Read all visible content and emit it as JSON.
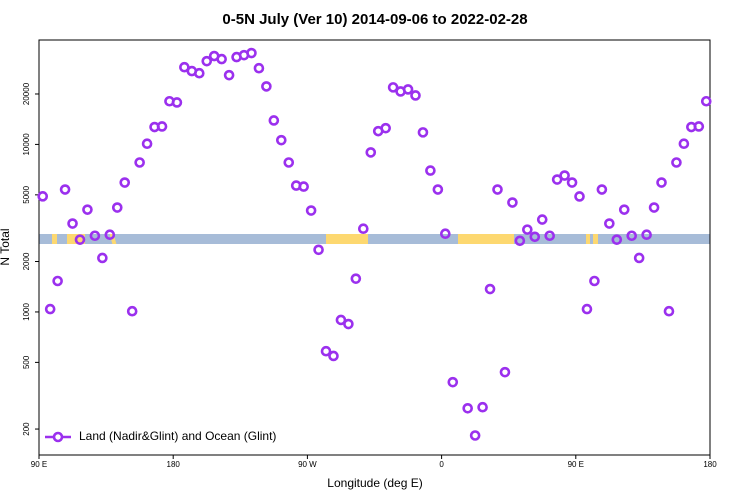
{
  "chart_data": {
    "type": "scatter",
    "title": "0-5N July (Ver 10)   2014-09-06 to 2022-02-28",
    "xlabel": "Longitude (deg E)",
    "ylabel": "N Total",
    "xlim": [
      90,
      540
    ],
    "xticks": [
      {
        "value": 90,
        "label": "90 E"
      },
      180,
      {
        "value": 270,
        "label": "90 W"
      },
      {
        "value": 360,
        "label": "0"
      },
      {
        "value": 450,
        "label": "90 E"
      },
      {
        "value": 540,
        "label": "180"
      }
    ],
    "ylim": [
      140,
      42000
    ],
    "yticks": [
      200,
      500,
      1000,
      2000,
      5000,
      10000,
      20000
    ],
    "log_y": true,
    "legend": "bottom-left",
    "series": [
      {
        "name": "Land (Nadir&Glint) and Ocean (Glint)",
        "color": "#9b30ee",
        "x": [
          92.5,
          97.5,
          102.5,
          107.5,
          112.5,
          117.5,
          122.5,
          127.5,
          132.5,
          137.5,
          142.5,
          147.5,
          152.5,
          157.5,
          162.5,
          167.5,
          172.5,
          177.5,
          182.5,
          187.5,
          192.5,
          197.5,
          202.5,
          207.5,
          212.5,
          217.5,
          222.5,
          227.5,
          232.5,
          237.5,
          242.5,
          247.5,
          252.5,
          257.5,
          262.5,
          267.5,
          272.5,
          277.5,
          282.5,
          287.5,
          292.5,
          297.5,
          302.5,
          307.5,
          312.5,
          317.5,
          322.5,
          327.5,
          332.5,
          337.5,
          342.5,
          347.5,
          352.5,
          357.5,
          362.5,
          367.5,
          377.5,
          382.5,
          387.5,
          392.5,
          397.5,
          402.5,
          407.5,
          412.5,
          417.5,
          422.5,
          427.5,
          432.5,
          437.5,
          442.5,
          447.5,
          452.5,
          457.5,
          462.5,
          467.5,
          472.5,
          477.5,
          482.5,
          487.5,
          492.5,
          497.5,
          502.5,
          507.5,
          512.5,
          517.5,
          522.5,
          527.5,
          532.5,
          537.5
        ],
        "values": [
          4900,
          1040,
          1530,
          5380,
          3370,
          2700,
          4080,
          2850,
          2100,
          2890,
          4200,
          5920,
          1010,
          7800,
          10100,
          12700,
          12800,
          18100,
          17800,
          28900,
          27400,
          26600,
          31400,
          33700,
          32300,
          25900,
          33200,
          34100,
          35100,
          28500,
          22200,
          13900,
          10600,
          7800,
          5680,
          5600,
          4030,
          2350,
          583,
          546,
          896,
          847,
          1580,
          3140,
          8960,
          12000,
          12500,
          21900,
          20700,
          21300,
          19600,
          11800,
          6980,
          5380,
          2930,
          381,
          266,
          183,
          270,
          1370,
          5380,
          437,
          4500,
          2660,
          3100,
          2810,
          3560,
          2850,
          6170,
          6520,
          5920,
          4890,
          1040,
          1530,
          5380,
          3370,
          2700,
          4080,
          2850,
          2100,
          2890,
          4200,
          5920,
          1010,
          7800,
          10100,
          12700,
          12800,
          18100
        ]
      }
    ]
  }
}
